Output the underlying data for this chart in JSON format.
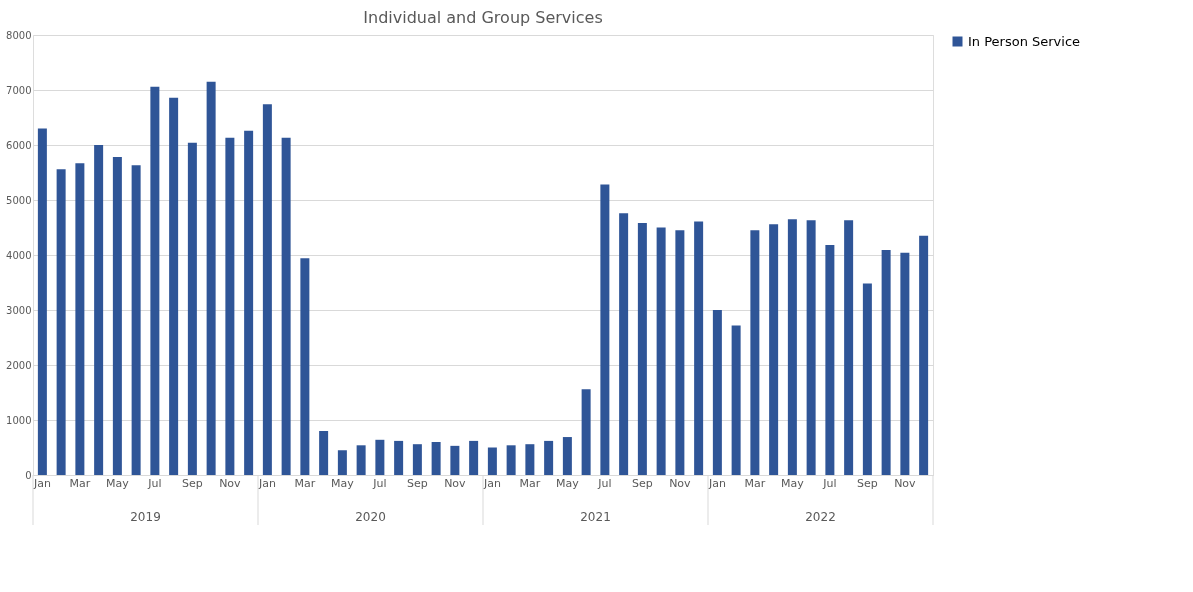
{
  "chart_data": {
    "type": "bar",
    "title": "Individual and Group Services",
    "categories": [
      "Jan",
      null,
      "Mar",
      null,
      "May",
      null,
      "Jul",
      null,
      "Sep",
      null,
      "Nov",
      null,
      "Jan",
      null,
      "Mar",
      null,
      "May",
      null,
      "Jul",
      null,
      "Sep",
      null,
      "Nov",
      null,
      "Jan",
      null,
      "Mar",
      null,
      "May",
      null,
      "Jul",
      null,
      "Sep",
      null,
      "Nov",
      null,
      "Jan",
      null,
      "Mar",
      null,
      "May",
      null,
      "Jul",
      null,
      "Sep",
      null,
      "Nov",
      null
    ],
    "series": [
      {
        "name": "In Person Service",
        "color": "#2f5597",
        "values": [
          6300,
          5560,
          5670,
          6000,
          5780,
          5630,
          7060,
          6860,
          6040,
          7150,
          6130,
          6260,
          6740,
          6130,
          3940,
          800,
          450,
          540,
          640,
          620,
          560,
          600,
          530,
          620,
          500,
          540,
          560,
          620,
          690,
          1560,
          5280,
          4760,
          4580,
          4500,
          4450,
          4610,
          3000,
          2720,
          4450,
          4560,
          4650,
          4630,
          4180,
          4630,
          3480,
          4090,
          4040,
          4350
        ]
      }
    ],
    "annotations": [
      "2019",
      "2020",
      "2021",
      "2022"
    ],
    "ylim": [
      0,
      8000
    ],
    "yticks": [
      0,
      1000,
      2000,
      3000,
      4000,
      5000,
      6000,
      7000,
      8000
    ],
    "grid": "y",
    "legend": "right"
  }
}
